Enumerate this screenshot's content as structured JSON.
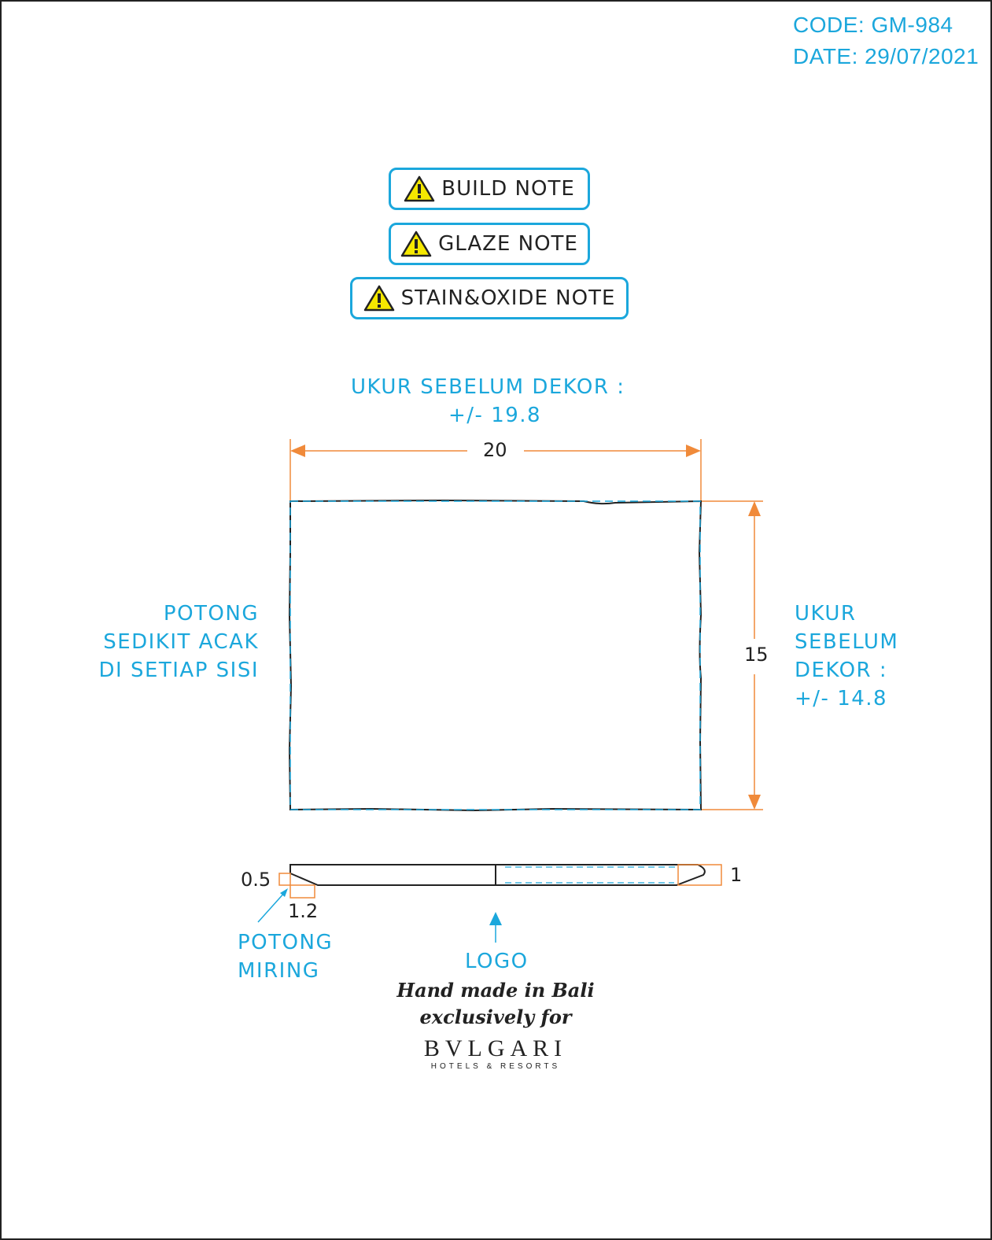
{
  "header": {
    "code": "CODE: GM-984",
    "date": "DATE: 29/07/2021"
  },
  "notes": [
    {
      "label": "BUILD NOTE",
      "icon": "warning-icon"
    },
    {
      "label": "GLAZE NOTE",
      "icon": "warning-icon"
    },
    {
      "label": "STAIN&OXIDE NOTE",
      "icon": "warning-icon"
    }
  ],
  "top_view": {
    "measure_before_decor_width": [
      "UKUR SEBELUM DEKOR :",
      "+/- 19.8"
    ],
    "width_label": "20",
    "height_label": "15",
    "measure_before_decor_height": [
      "UKUR",
      "SEBELUM",
      "DEKOR :",
      "+/- 14.8"
    ],
    "cut_note": [
      "POTONG",
      "SEDIKIT ACAK",
      "DI SETIAP SISI"
    ]
  },
  "side_view": {
    "edge_thickness": "0.5",
    "bevel_length": "1.2",
    "thickness": "1",
    "bevel_note": [
      "POTONG",
      "MIRING"
    ],
    "logo_label": "LOGO"
  },
  "stamp": {
    "line1": "Hand made in Bali",
    "line2": "exclusively for",
    "brand": "BVLGARI",
    "brand_sub": "HOTELS & RESORTS"
  },
  "colors": {
    "accent": "#1ba7dc",
    "dimension": "#f08a3a",
    "outline": "#222222",
    "warning_fill": "#f5e800"
  }
}
